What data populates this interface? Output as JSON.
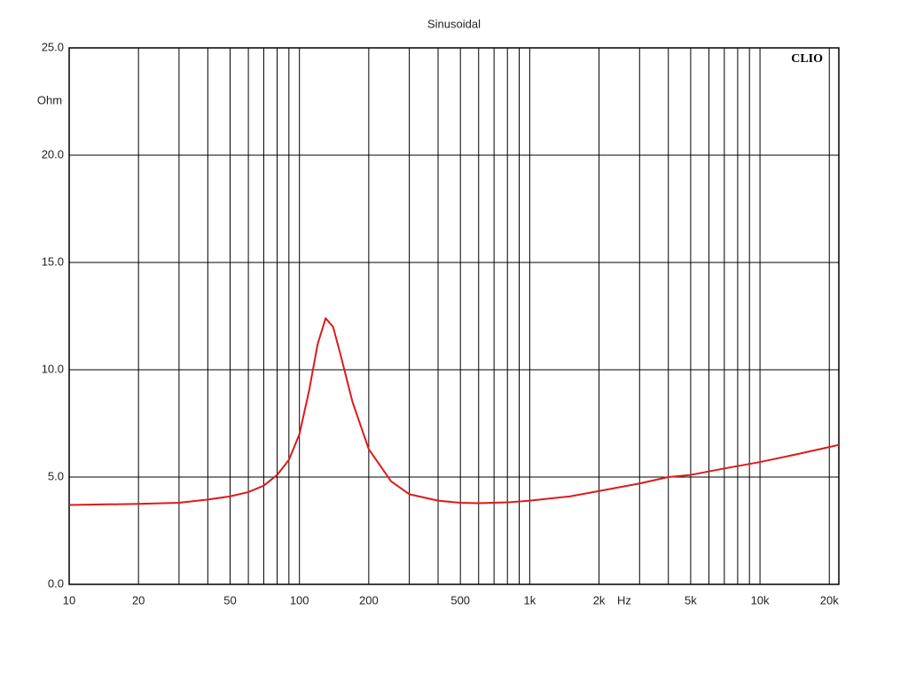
{
  "chart_data": {
    "type": "line",
    "title": "Sinusoidal",
    "brand": "CLIO",
    "x_label": "Hz",
    "y_label": "Ohm",
    "xscale": "log",
    "grid": true,
    "xlim": [
      10,
      22000
    ],
    "ylim": [
      0,
      25
    ],
    "xticks": [
      10,
      20,
      50,
      100,
      200,
      500,
      {
        "value": 1000,
        "label": "1k"
      },
      {
        "value": 2000,
        "label": "2k"
      },
      {
        "value": 5000,
        "label": "5k"
      },
      {
        "value": 10000,
        "label": "10k"
      },
      {
        "value": 20000,
        "label": "20k"
      }
    ],
    "x_minor_grid": [
      30,
      40,
      60,
      70,
      80,
      90,
      300,
      400,
      600,
      700,
      800,
      900,
      3000,
      4000,
      6000,
      7000,
      8000,
      9000
    ],
    "yticks": [
      {
        "value": 0,
        "label": "0.0"
      },
      {
        "value": 5,
        "label": "5.0"
      },
      {
        "value": 10,
        "label": "10.0"
      },
      {
        "value": 15,
        "label": "15.0"
      },
      {
        "value": 20,
        "label": "20.0"
      },
      {
        "value": 25,
        "label": "25.0"
      }
    ],
    "series": [
      {
        "color": "#dd1a1a",
        "x": [
          10,
          20,
          30,
          40,
          50,
          60,
          70,
          80,
          90,
          100,
          110,
          120,
          130,
          140,
          150,
          170,
          200,
          250,
          300,
          400,
          500,
          600,
          800,
          1000,
          1500,
          2000,
          3000,
          4000,
          5000,
          7000,
          10000,
          15000,
          20000,
          22000
        ],
        "values": [
          3.7,
          3.75,
          3.8,
          3.95,
          4.1,
          4.3,
          4.6,
          5.1,
          5.8,
          7.0,
          9.0,
          11.2,
          12.4,
          12.0,
          10.8,
          8.5,
          6.3,
          4.8,
          4.2,
          3.9,
          3.8,
          3.78,
          3.82,
          3.9,
          4.1,
          4.35,
          4.7,
          5.0,
          5.1,
          5.4,
          5.7,
          6.1,
          6.4,
          6.5
        ]
      }
    ]
  }
}
